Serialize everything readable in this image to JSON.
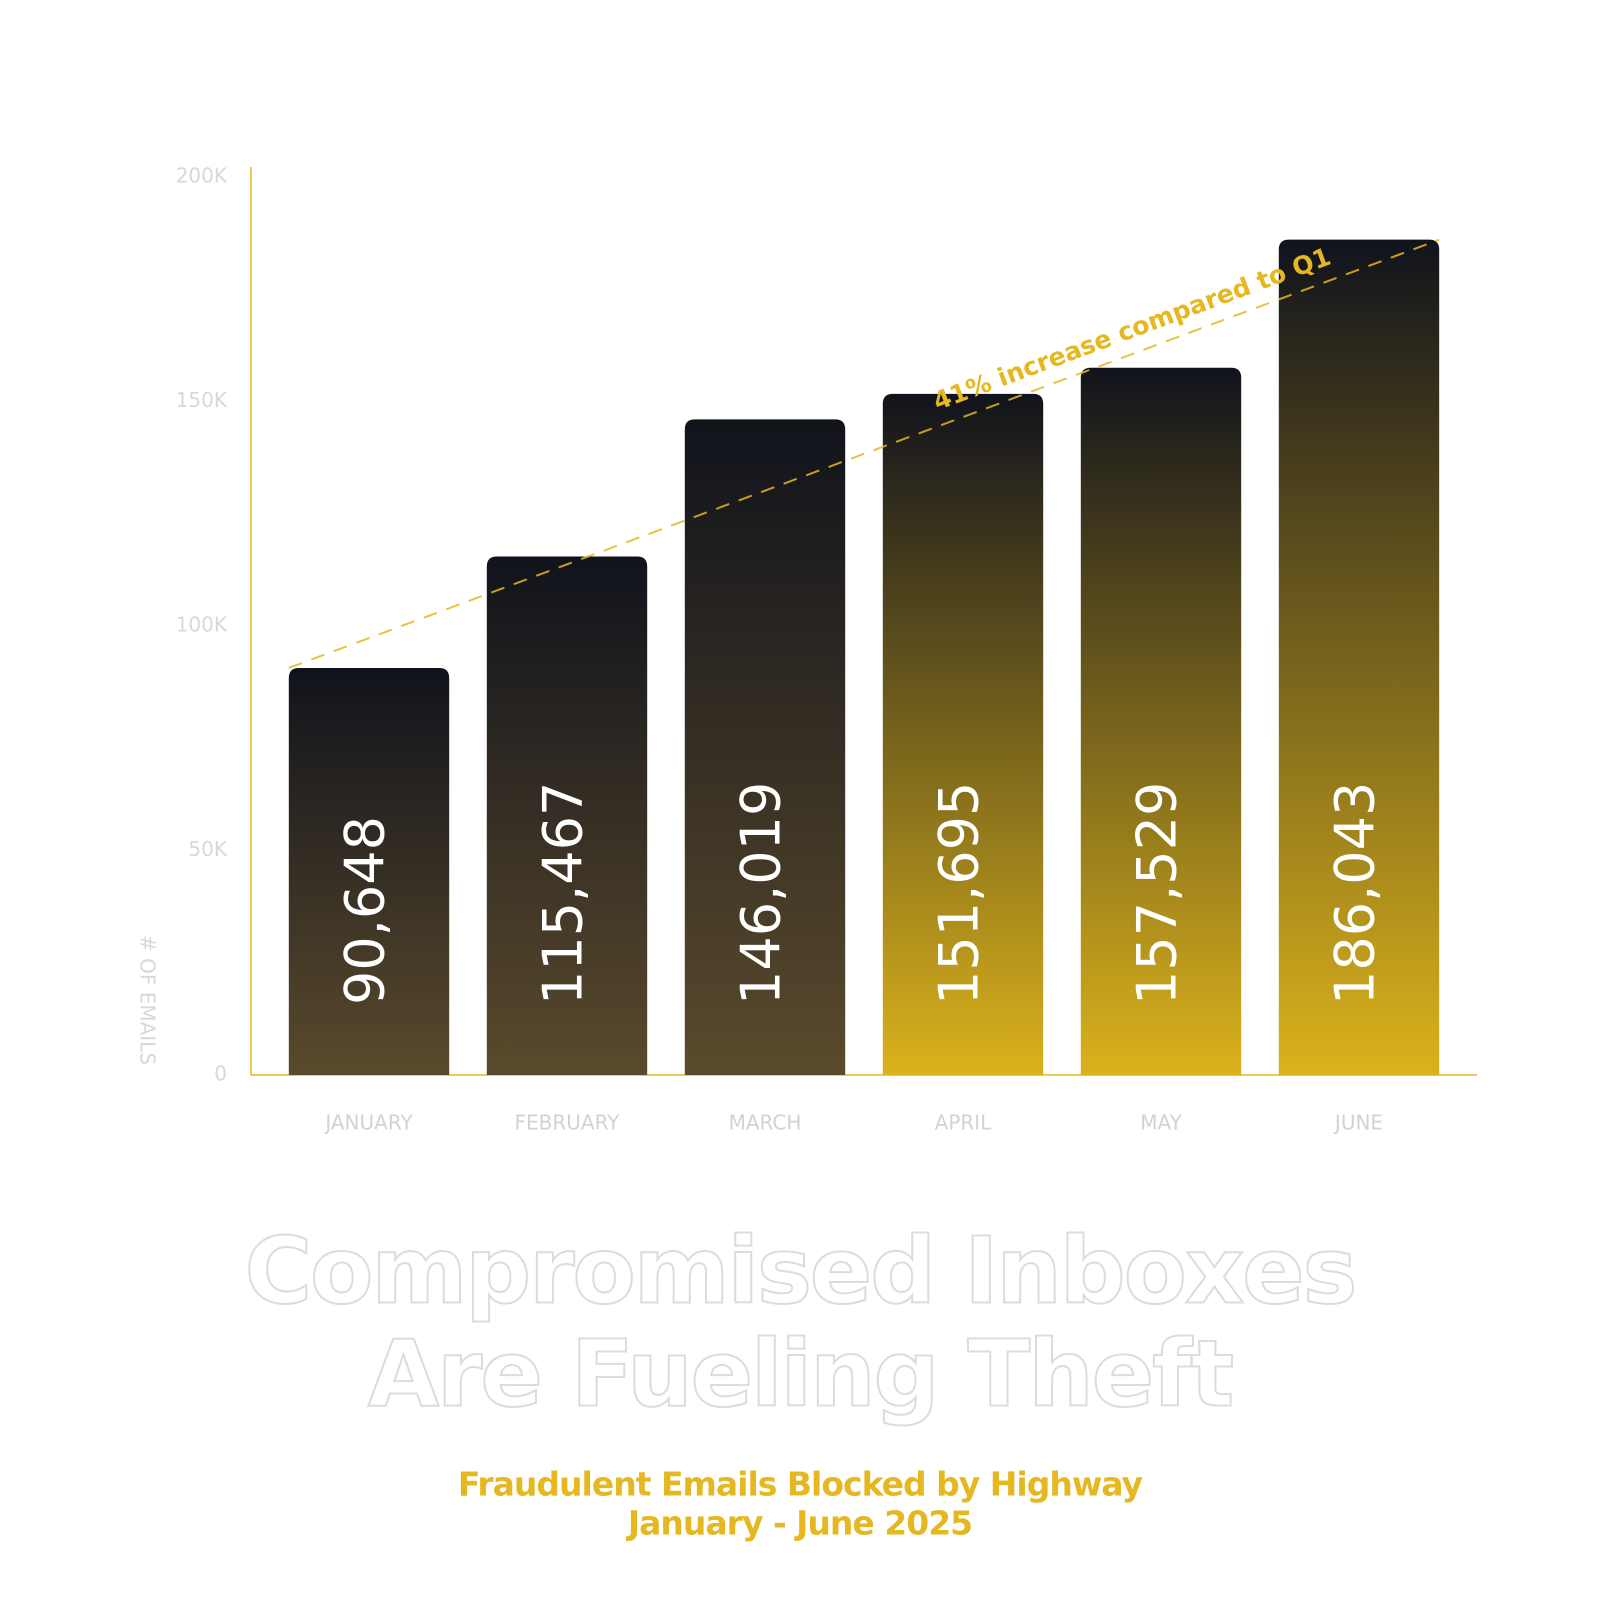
{
  "chart_data": {
    "type": "bar",
    "title": [
      "Compromised Inboxes",
      "Are Fueling Theft"
    ],
    "subtitle": [
      "Fraudulent Emails Blocked by Highway",
      "January - June 2025"
    ],
    "y_label": "# OF EMAILS",
    "annotation": "41% increase compared to Q1",
    "categories": [
      "JANUARY",
      "FEBRUARY",
      "MARCH",
      "APRIL",
      "MAY",
      "JUNE"
    ],
    "values": [
      90648,
      115467,
      146019,
      151695,
      157529,
      186043
    ],
    "value_labels": [
      "90,648",
      "115,467",
      "146,019",
      "151,695",
      "157,529",
      "186,043"
    ],
    "top_color": "#11131c",
    "colors": [
      "#5a4a2c",
      "#5a4a2c",
      "#5a4a2c",
      "#dbb21c",
      "#dbb21c",
      "#dbb21c"
    ],
    "accent_color": "#e5b822",
    "ylim": [
      0,
      200000
    ],
    "yticks": [
      0,
      {
        "value": 50000,
        "label": "50K"
      },
      {
        "value": 100000,
        "label": "100K"
      },
      {
        "value": 150000,
        "label": "150K"
      },
      {
        "value": 200000,
        "label": "200K"
      }
    ],
    "grid": false
  }
}
